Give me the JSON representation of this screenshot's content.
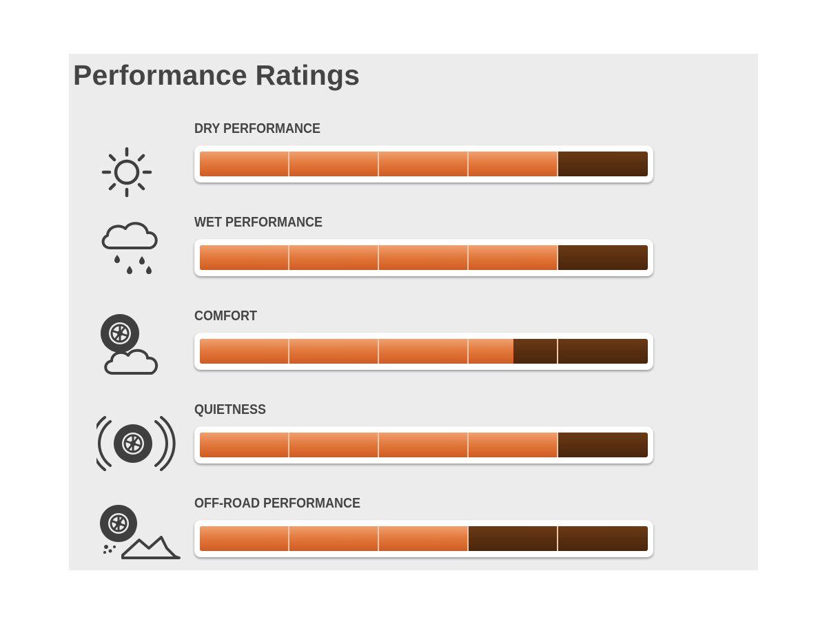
{
  "title": "Performance Ratings",
  "segments": 5,
  "colors": {
    "filled": "#e47a3e",
    "empty": "#5a2f10",
    "background": "#ececec",
    "text": "#444444"
  },
  "ratings": [
    {
      "label": "DRY PERFORMANCE",
      "icon": "sun-icon",
      "value": 4,
      "max": 5
    },
    {
      "label": "WET PERFORMANCE",
      "icon": "rain-cloud-icon",
      "value": 4,
      "max": 5
    },
    {
      "label": "COMFORT",
      "icon": "tire-cloud-icon",
      "value": 3.5,
      "max": 5
    },
    {
      "label": "QUIETNESS",
      "icon": "tire-sound-waves-icon",
      "value": 4,
      "max": 5
    },
    {
      "label": "OFF-ROAD PERFORMANCE",
      "icon": "tire-mountain-icon",
      "value": 3,
      "max": 5
    }
  ]
}
